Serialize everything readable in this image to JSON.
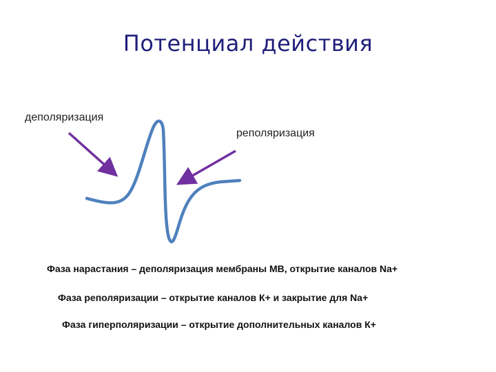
{
  "title": "Потенциал действия",
  "labels": {
    "depolarization": "деполяризация",
    "repolarization": "реполяризация"
  },
  "descriptions": [
    "Фаза нарастания – деполяризация мембраны МВ, открытие каналов Na+",
    "Фаза реполяризации – открытие каналов К+ и закрытие для Na+",
    "Фаза гиперполяризации –  открытие дополнительных каналов К+"
  ],
  "colors": {
    "curve": "#4f81bd",
    "arrow": "#7030a0",
    "title": "#1f1f7a"
  }
}
